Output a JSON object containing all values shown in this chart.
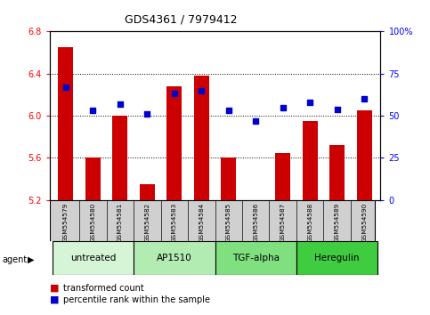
{
  "title": "GDS4361 / 7979412",
  "samples": [
    "GSM554579",
    "GSM554580",
    "GSM554581",
    "GSM554582",
    "GSM554583",
    "GSM554584",
    "GSM554585",
    "GSM554586",
    "GSM554587",
    "GSM554588",
    "GSM554589",
    "GSM554590"
  ],
  "bar_values": [
    6.65,
    5.6,
    6.0,
    5.35,
    6.28,
    6.38,
    5.6,
    5.2,
    5.65,
    5.95,
    5.72,
    6.05
  ],
  "dot_values": [
    67,
    53,
    57,
    51,
    63,
    65,
    53,
    47,
    55,
    58,
    54,
    60
  ],
  "bar_color": "#cc0000",
  "dot_color": "#0000cc",
  "ylim_left": [
    5.2,
    6.8
  ],
  "ylim_right": [
    0,
    100
  ],
  "yticks_left": [
    5.2,
    5.6,
    6.0,
    6.4,
    6.8
  ],
  "yticks_right": [
    0,
    25,
    50,
    75,
    100
  ],
  "ytick_labels_right": [
    "0",
    "25",
    "50",
    "75",
    "100%"
  ],
  "groups": [
    {
      "label": "untreated",
      "start": 0,
      "end": 3,
      "color": "#d6f5d6"
    },
    {
      "label": "AP1510",
      "start": 3,
      "end": 6,
      "color": "#b3ecb3"
    },
    {
      "label": "TGF-alpha",
      "start": 6,
      "end": 9,
      "color": "#80e080"
    },
    {
      "label": "Heregulin",
      "start": 9,
      "end": 12,
      "color": "#40cc40"
    }
  ],
  "agent_label": "agent",
  "legend_bar_label": "transformed count",
  "legend_dot_label": "percentile rank within the sample",
  "sample_bg_color": "#d0d0d0",
  "background_color": "#ffffff"
}
